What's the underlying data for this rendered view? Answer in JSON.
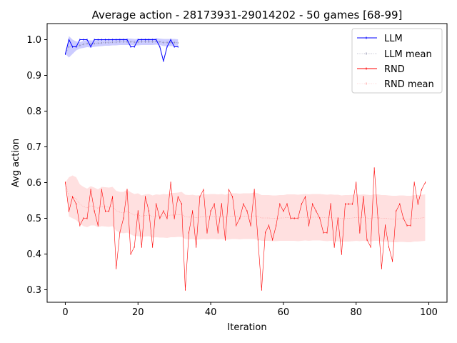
{
  "chart_data": {
    "type": "line",
    "title": "Average action - 28173931-29014202 - 50 games [68-99]",
    "xlabel": "Iteration",
    "ylabel": "Avg action",
    "xlim": [
      -5,
      105
    ],
    "ylim": [
      0.265,
      1.045
    ],
    "xticks": [
      0,
      20,
      40,
      60,
      80,
      100
    ],
    "yticks": [
      0.3,
      0.4,
      0.5,
      0.6,
      0.7,
      0.8,
      0.9,
      1.0
    ],
    "xtick_labels": [
      "0",
      "20",
      "40",
      "60",
      "80",
      "100"
    ],
    "ytick_labels": [
      "0.3",
      "0.4",
      "0.5",
      "0.6",
      "0.7",
      "0.8",
      "0.9",
      "1.0"
    ],
    "legend_position": "top-right",
    "colors": {
      "llm": "#0000ff",
      "llm_band": "#0000ff",
      "rnd": "#ff0000",
      "rnd_band": "#ff0000",
      "llm_mean": "#8080a0",
      "rnd_mean": "#ff8080"
    },
    "series": [
      {
        "name": "LLM",
        "key": "llm",
        "x_start": 0,
        "values": [
          0.96,
          1.0,
          0.98,
          0.98,
          1.0,
          1.0,
          1.0,
          0.98,
          1.0,
          1.0,
          1.0,
          1.0,
          1.0,
          1.0,
          1.0,
          1.0,
          1.0,
          1.0,
          0.98,
          0.98,
          1.0,
          1.0,
          1.0,
          1.0,
          1.0,
          1.0,
          0.98,
          0.94,
          0.98,
          1.0,
          0.98,
          0.98
        ]
      },
      {
        "name": "LLM mean",
        "key": "llm_mean",
        "x_start": 0,
        "values": [
          0.96,
          0.98,
          0.98,
          0.98,
          0.984,
          0.987,
          0.989,
          0.988,
          0.989,
          0.99,
          0.991,
          0.992,
          0.992,
          0.993,
          0.993,
          0.994,
          0.994,
          0.994,
          0.994,
          0.993,
          0.993,
          0.994,
          0.994,
          0.994,
          0.994,
          0.995,
          0.994,
          0.992,
          0.992,
          0.992,
          0.992,
          0.991
        ]
      },
      {
        "name": "RND",
        "key": "rnd",
        "x_start": 0,
        "values": [
          0.6,
          0.52,
          0.56,
          0.54,
          0.48,
          0.5,
          0.5,
          0.58,
          0.52,
          0.48,
          0.58,
          0.52,
          0.52,
          0.56,
          0.36,
          0.46,
          0.5,
          0.58,
          0.4,
          0.42,
          0.52,
          0.42,
          0.56,
          0.52,
          0.42,
          0.54,
          0.5,
          0.52,
          0.5,
          0.6,
          0.5,
          0.56,
          0.54,
          0.3,
          0.46,
          0.52,
          0.42,
          0.56,
          0.58,
          0.46,
          0.52,
          0.54,
          0.46,
          0.54,
          0.44,
          0.58,
          0.56,
          0.48,
          0.5,
          0.54,
          0.52,
          0.48,
          0.58,
          0.44,
          0.3,
          0.46,
          0.48,
          0.44,
          0.48,
          0.54,
          0.52,
          0.54,
          0.5,
          0.5,
          0.5,
          0.54,
          0.56,
          0.48,
          0.54,
          0.52,
          0.5,
          0.46,
          0.46,
          0.54,
          0.42,
          0.5,
          0.4,
          0.54,
          0.54,
          0.54,
          0.6,
          0.46,
          0.56,
          0.44,
          0.42,
          0.64,
          0.5,
          0.36,
          0.48,
          0.42,
          0.38,
          0.52,
          0.54,
          0.5,
          0.48,
          0.48,
          0.6,
          0.54,
          0.58,
          0.6
        ]
      },
      {
        "name": "RND mean",
        "key": "rnd_mean",
        "x_start": 0,
        "values": [
          0.6,
          0.56,
          0.56,
          0.555,
          0.54,
          0.533,
          0.529,
          0.535,
          0.533,
          0.528,
          0.533,
          0.532,
          0.531,
          0.533,
          0.521,
          0.517,
          0.516,
          0.52,
          0.514,
          0.509,
          0.51,
          0.506,
          0.508,
          0.509,
          0.505,
          0.507,
          0.506,
          0.507,
          0.506,
          0.509,
          0.509,
          0.51,
          0.511,
          0.504,
          0.503,
          0.504,
          0.502,
          0.503,
          0.505,
          0.504,
          0.505,
          0.505,
          0.504,
          0.505,
          0.503,
          0.505,
          0.506,
          0.506,
          0.505,
          0.506,
          0.506,
          0.506,
          0.507,
          0.505,
          0.501,
          0.501,
          0.501,
          0.5,
          0.5,
          0.501,
          0.501,
          0.502,
          0.502,
          0.502,
          0.501,
          0.502,
          0.503,
          0.502,
          0.503,
          0.503,
          0.503,
          0.502,
          0.501,
          0.502,
          0.501,
          0.501,
          0.499,
          0.5,
          0.5,
          0.501,
          0.502,
          0.501,
          0.502,
          0.501,
          0.5,
          0.502,
          0.502,
          0.5,
          0.5,
          0.499,
          0.498,
          0.498,
          0.499,
          0.499,
          0.498,
          0.498,
          0.5,
          0.5,
          0.501,
          0.502
        ]
      }
    ],
    "bands": [
      {
        "key": "llm_band",
        "x_start": 0,
        "lower": [
          0.96,
          0.95,
          0.96,
          0.97,
          0.975,
          0.977,
          0.979,
          0.978,
          0.98,
          0.981,
          0.982,
          0.983,
          0.983,
          0.984,
          0.984,
          0.985,
          0.985,
          0.985,
          0.985,
          0.984,
          0.984,
          0.985,
          0.985,
          0.985,
          0.985,
          0.986,
          0.985,
          0.982,
          0.982,
          0.982,
          0.982,
          0.981
        ],
        "upper": [
          0.96,
          1.01,
          1.0,
          0.995,
          0.993,
          0.997,
          0.999,
          0.998,
          0.998,
          0.999,
          1.0,
          1.001,
          1.001,
          1.002,
          1.002,
          1.003,
          1.003,
          1.003,
          1.003,
          1.002,
          1.002,
          1.003,
          1.003,
          1.003,
          1.003,
          1.004,
          1.003,
          1.002,
          1.002,
          1.002,
          1.002,
          1.001
        ]
      },
      {
        "key": "rnd_band",
        "x_start": 0,
        "lower": [
          0.6,
          0.505,
          0.5,
          0.495,
          0.485,
          0.478,
          0.475,
          0.48,
          0.48,
          0.475,
          0.478,
          0.477,
          0.476,
          0.478,
          0.465,
          0.46,
          0.458,
          0.46,
          0.455,
          0.45,
          0.45,
          0.448,
          0.449,
          0.45,
          0.446,
          0.447,
          0.446,
          0.446,
          0.445,
          0.447,
          0.447,
          0.448,
          0.448,
          0.442,
          0.441,
          0.442,
          0.44,
          0.441,
          0.442,
          0.441,
          0.442,
          0.442,
          0.441,
          0.442,
          0.44,
          0.441,
          0.442,
          0.442,
          0.441,
          0.442,
          0.442,
          0.442,
          0.442,
          0.44,
          0.437,
          0.437,
          0.437,
          0.436,
          0.436,
          0.437,
          0.437,
          0.437,
          0.437,
          0.437,
          0.436,
          0.437,
          0.438,
          0.437,
          0.438,
          0.438,
          0.438,
          0.437,
          0.436,
          0.437,
          0.436,
          0.436,
          0.434,
          0.435,
          0.435,
          0.436,
          0.437,
          0.436,
          0.437,
          0.436,
          0.435,
          0.437,
          0.437,
          0.435,
          0.435,
          0.434,
          0.433,
          0.433,
          0.434,
          0.434,
          0.433,
          0.433,
          0.435,
          0.435,
          0.436,
          0.437
        ],
        "upper": [
          0.6,
          0.615,
          0.62,
          0.615,
          0.595,
          0.588,
          0.583,
          0.59,
          0.586,
          0.581,
          0.588,
          0.587,
          0.586,
          0.588,
          0.577,
          0.574,
          0.574,
          0.58,
          0.573,
          0.568,
          0.57,
          0.564,
          0.567,
          0.568,
          0.564,
          0.567,
          0.566,
          0.568,
          0.567,
          0.571,
          0.571,
          0.572,
          0.574,
          0.566,
          0.565,
          0.566,
          0.564,
          0.565,
          0.568,
          0.567,
          0.568,
          0.568,
          0.567,
          0.568,
          0.566,
          0.569,
          0.57,
          0.57,
          0.569,
          0.57,
          0.57,
          0.57,
          0.572,
          0.57,
          0.565,
          0.565,
          0.565,
          0.564,
          0.564,
          0.565,
          0.565,
          0.567,
          0.567,
          0.567,
          0.566,
          0.567,
          0.568,
          0.567,
          0.568,
          0.568,
          0.568,
          0.567,
          0.566,
          0.567,
          0.566,
          0.566,
          0.564,
          0.565,
          0.565,
          0.566,
          0.567,
          0.566,
          0.567,
          0.566,
          0.565,
          0.567,
          0.567,
          0.565,
          0.565,
          0.564,
          0.563,
          0.563,
          0.564,
          0.564,
          0.563,
          0.563,
          0.565,
          0.565,
          0.566,
          0.567
        ]
      }
    ]
  }
}
